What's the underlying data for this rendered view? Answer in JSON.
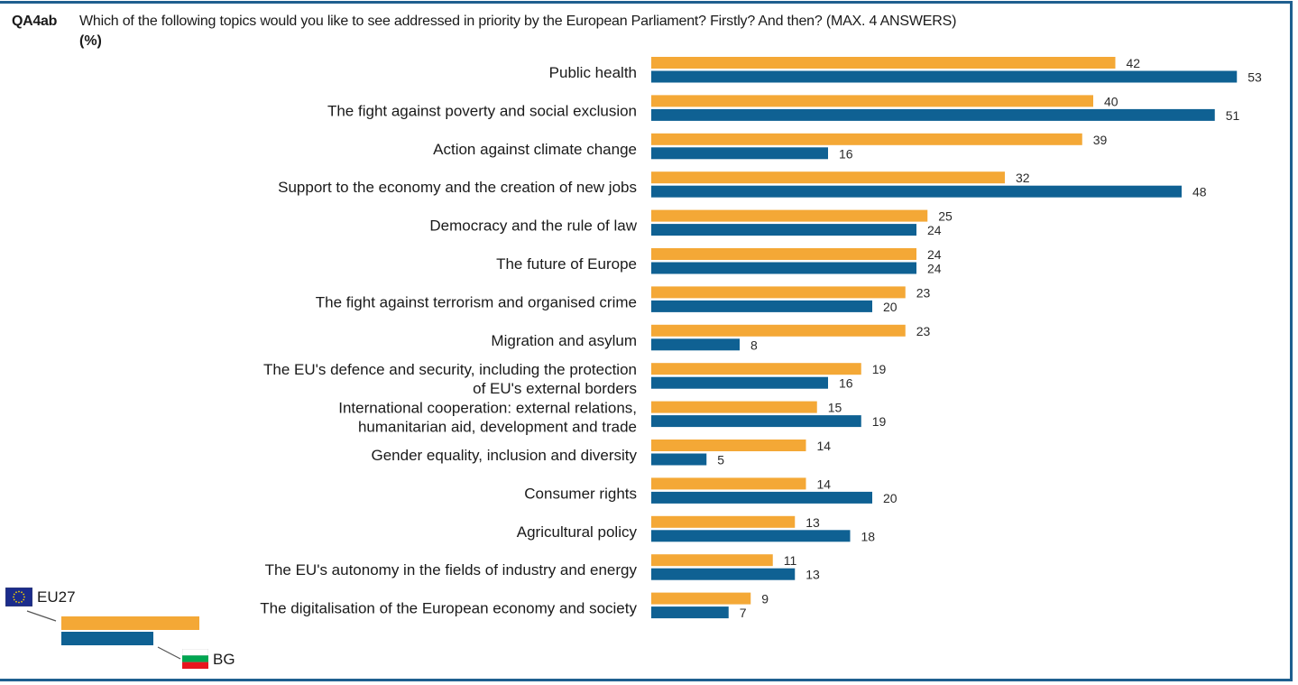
{
  "question": {
    "id": "QA4ab",
    "text": "Which of the following topics would you like to see addressed in priority by the European Parliament? Firstly? And then? (MAX. 4 ANSWERS)",
    "unit": "(%)"
  },
  "colors": {
    "eu27": "#f4a836",
    "bg": "#0f6193",
    "frame": "#1f5f8f"
  },
  "legend": {
    "series": [
      {
        "label": "EU27",
        "icon": "eu-flag-icon"
      },
      {
        "label": "BG",
        "icon": "bulgaria-flag-icon"
      }
    ]
  },
  "chart_data": {
    "type": "bar",
    "orientation": "horizontal",
    "title": "QA4ab Which of the following topics would you like to see addressed in priority by the European Parliament? Firstly? And then? (MAX. 4 ANSWERS) (%)",
    "xlabel": "",
    "ylabel": "",
    "xlim": [
      0,
      55
    ],
    "grid": false,
    "legend_position": "bottom-left",
    "categories": [
      [
        "Public health"
      ],
      [
        "The fight against poverty and social exclusion"
      ],
      [
        "Action against climate change"
      ],
      [
        "Support to the economy and the creation of new jobs"
      ],
      [
        "Democracy and the rule of law"
      ],
      [
        "The future of Europe"
      ],
      [
        "The fight against terrorism and organised crime"
      ],
      [
        "Migration and asylum"
      ],
      [
        "The EU's defence and security, including the protection",
        "of EU's external borders"
      ],
      [
        "International cooperation: external relations,",
        "humanitarian aid, development and trade"
      ],
      [
        "Gender equality, inclusion and diversity"
      ],
      [
        "Consumer rights"
      ],
      [
        "Agricultural policy"
      ],
      [
        "The EU's autonomy in the fields of industry and energy"
      ],
      [
        "The digitalisation of the European economy and society"
      ]
    ],
    "series": [
      {
        "name": "EU27",
        "values": [
          42,
          40,
          39,
          32,
          25,
          24,
          23,
          23,
          19,
          15,
          14,
          14,
          13,
          11,
          9
        ]
      },
      {
        "name": "BG",
        "values": [
          53,
          51,
          16,
          48,
          24,
          24,
          20,
          8,
          16,
          19,
          5,
          20,
          18,
          13,
          7
        ]
      }
    ]
  }
}
